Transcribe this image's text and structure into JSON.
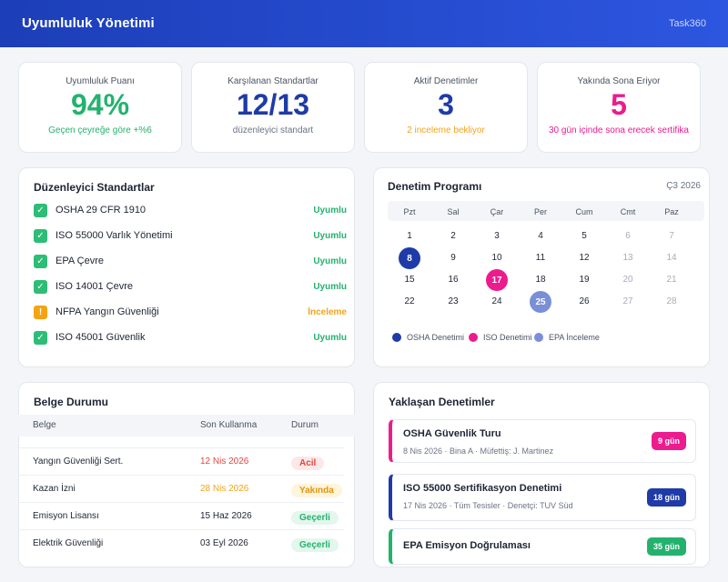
{
  "header": {
    "title": "Uyumluluk Yönetimi",
    "brand": "Task360"
  },
  "stats": [
    {
      "label": "Uyumluluk Puanı",
      "value": "94%",
      "sub": "Geçen çeyreğe göre +%6",
      "value_color": "#23b26e",
      "sub_color": "#23b26e"
    },
    {
      "label": "Karşılanan Standartlar",
      "value": "12/13",
      "sub": "düzenleyici standart",
      "value_color": "#1f3ba8",
      "sub_color": "#6b7384"
    },
    {
      "label": "Aktif Denetimler",
      "value": "3",
      "sub": "2 inceleme bekliyor",
      "value_color": "#1f3ba8",
      "sub_color": "#f2a41c"
    },
    {
      "label": "Yakında Sona Eriyor",
      "value": "5",
      "sub": "30 gün içinde sona erecek sertifika",
      "value_color": "#ec1b8e",
      "sub_color": "#ec1b8e"
    }
  ],
  "standards": {
    "title": "Düzenleyici Standartlar",
    "items": [
      {
        "name": "OSHA 29 CFR 1910",
        "status": "Uyumlu",
        "state": "ok"
      },
      {
        "name": "ISO 55000 Varlık Yönetimi",
        "status": "Uyumlu",
        "state": "ok"
      },
      {
        "name": "EPA Çevre",
        "status": "Uyumlu",
        "state": "ok"
      },
      {
        "name": "ISO 14001 Çevre",
        "status": "Uyumlu",
        "state": "ok"
      },
      {
        "name": "NFPA Yangın Güvenliği",
        "status": "İnceleme",
        "state": "warn"
      },
      {
        "name": "ISO 45001 Güvenlik",
        "status": "Uyumlu",
        "state": "ok"
      }
    ],
    "colors": {
      "ok": "#23b26e",
      "warn": "#f2a41c"
    }
  },
  "calendar": {
    "title": "Denetim Programı",
    "period": "Ç3 2026",
    "weekdays": [
      "Pzt",
      "Sal",
      "Çar",
      "Per",
      "Cum",
      "Cmt",
      "Paz"
    ],
    "weeks": [
      [
        "1",
        "2",
        "3",
        "4",
        "5",
        "6",
        "7"
      ],
      [
        "8",
        "9",
        "10",
        "11",
        "12",
        "13",
        "14"
      ],
      [
        "15",
        "16",
        "17",
        "18",
        "19",
        "20",
        "21"
      ],
      [
        "22",
        "23",
        "24",
        "25",
        "26",
        "27",
        "28"
      ]
    ],
    "marked": [
      {
        "day": "8",
        "color": "#1f3ba8"
      },
      {
        "day": "17",
        "color": "#ec1b8e"
      },
      {
        "day": "25",
        "color": "#7b8fd8"
      }
    ],
    "legend": [
      {
        "label": "OSHA Denetimi",
        "color": "#1f3ba8"
      },
      {
        "label": "ISO Denetimi",
        "color": "#ec1b8e"
      },
      {
        "label": "EPA İnceleme",
        "color": "#7b8fd8"
      }
    ]
  },
  "documents": {
    "title": "Belge Durumu",
    "columns": [
      "Belge",
      "Son Kullanma",
      "Durum"
    ],
    "rows": [
      {
        "name": "Yangın Güvenliği Sert.",
        "expiry": "12 Nis 2026",
        "status": "Acil",
        "expiry_color": "#e0473f",
        "status_color": "#e0473f",
        "status_bg": "#fde8e7"
      },
      {
        "name": "Kazan İzni",
        "expiry": "28 Nis 2026",
        "status": "Yakında",
        "expiry_color": "#f2a41c",
        "status_color": "#e0960e",
        "status_bg": "#fff4dc"
      },
      {
        "name": "Emisyon Lisansı",
        "expiry": "15 Haz 2026",
        "status": "Geçerli",
        "expiry_color": "#1d2433",
        "status_color": "#23b26e",
        "status_bg": "#e3f7ec"
      },
      {
        "name": "Elektrik Güvenliği",
        "expiry": "03 Eyl 2026",
        "status": "Geçerli",
        "expiry_color": "#1d2433",
        "status_color": "#23b26e",
        "status_bg": "#e3f7ec"
      }
    ]
  },
  "upcoming": {
    "title": "Yaklaşan Denetimler",
    "items": [
      {
        "title": "OSHA Güvenlik Turu",
        "meta": "8 Nis 2026 · Bina A · Müfettiş: J. Martinez",
        "badge": "9 gün",
        "color": "#ec1b8e"
      },
      {
        "title": "ISO 55000 Sertifikasyon Denetimi",
        "meta": "17 Nis 2026 · Tüm Tesisler · Denetçi: TUV Süd",
        "badge": "18 gün",
        "color": "#1f3ba8"
      },
      {
        "title": "EPA Emisyon Doğrulaması",
        "meta": "",
        "badge": "35 gün",
        "color": "#23b26e"
      }
    ]
  }
}
